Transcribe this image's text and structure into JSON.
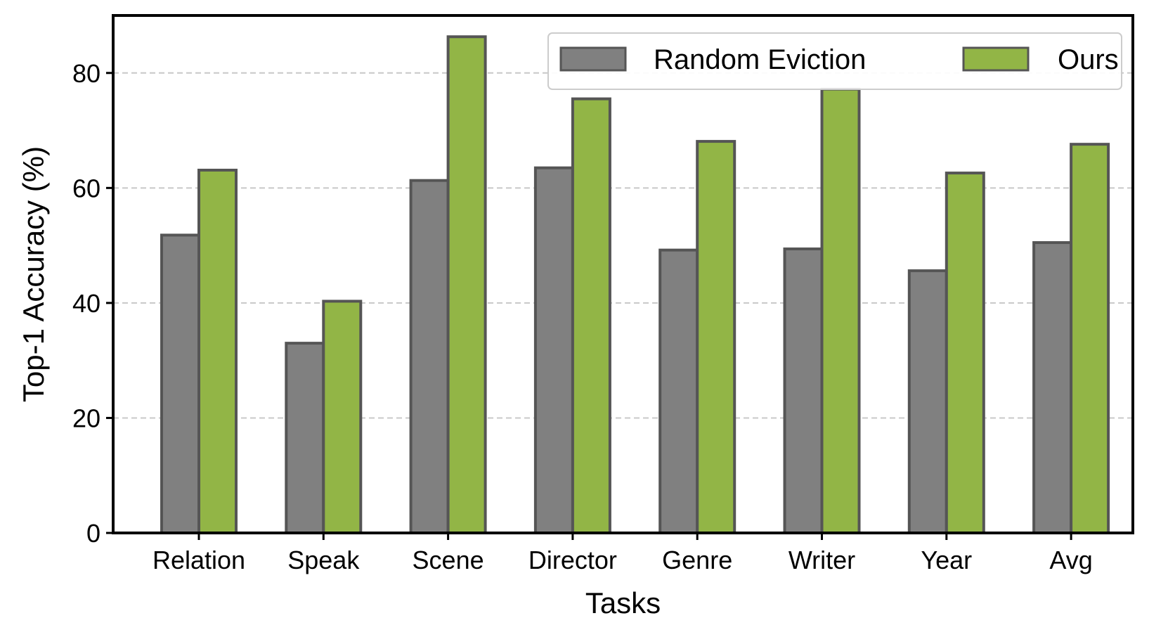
{
  "chart_data": {
    "type": "bar",
    "xlabel": "Tasks",
    "ylabel": "Top-1 Accuracy (%)",
    "ylim": [
      0,
      90
    ],
    "yticks": [
      0,
      20,
      40,
      60,
      80
    ],
    "grid": "horizontal dashed",
    "legend_position": "top-right",
    "categories": [
      "Relation",
      "Speak",
      "Scene",
      "Director",
      "Genre",
      "Writer",
      "Year",
      "Avg"
    ],
    "series": [
      {
        "name": "Random Eviction",
        "color": "#808080",
        "values": [
          51.8,
          33.0,
          61.3,
          63.5,
          49.2,
          49.4,
          45.6,
          50.5
        ]
      },
      {
        "name": "Ours",
        "color": "#92b546",
        "values": [
          63.1,
          40.3,
          86.3,
          75.5,
          68.1,
          77.2,
          62.6,
          67.6
        ]
      }
    ]
  }
}
